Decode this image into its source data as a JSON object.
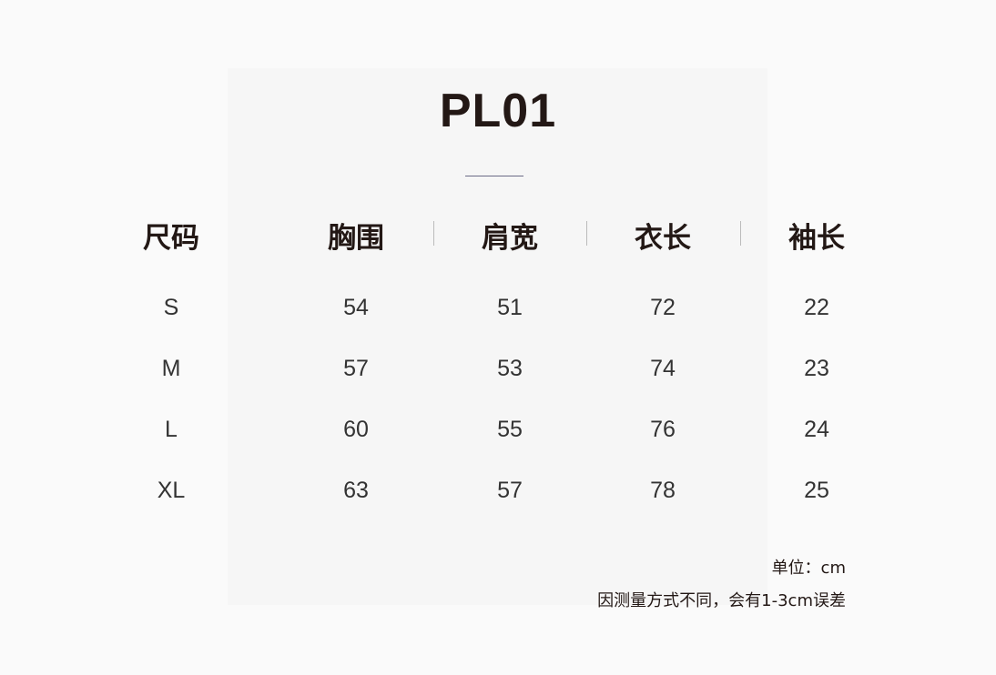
{
  "title": "PL01",
  "headers": [
    "尺码",
    "胸围",
    "肩宽",
    "衣长",
    "袖长"
  ],
  "rows": [
    [
      "S",
      "54",
      "51",
      "72",
      "22"
    ],
    [
      "M",
      "57",
      "53",
      "74",
      "23"
    ],
    [
      "L",
      "60",
      "55",
      "76",
      "24"
    ],
    [
      "XL",
      "63",
      "57",
      "78",
      "25"
    ]
  ],
  "unit_note": "单位：cm",
  "error_note": "因测量方式不同，会有1-3cm误差"
}
